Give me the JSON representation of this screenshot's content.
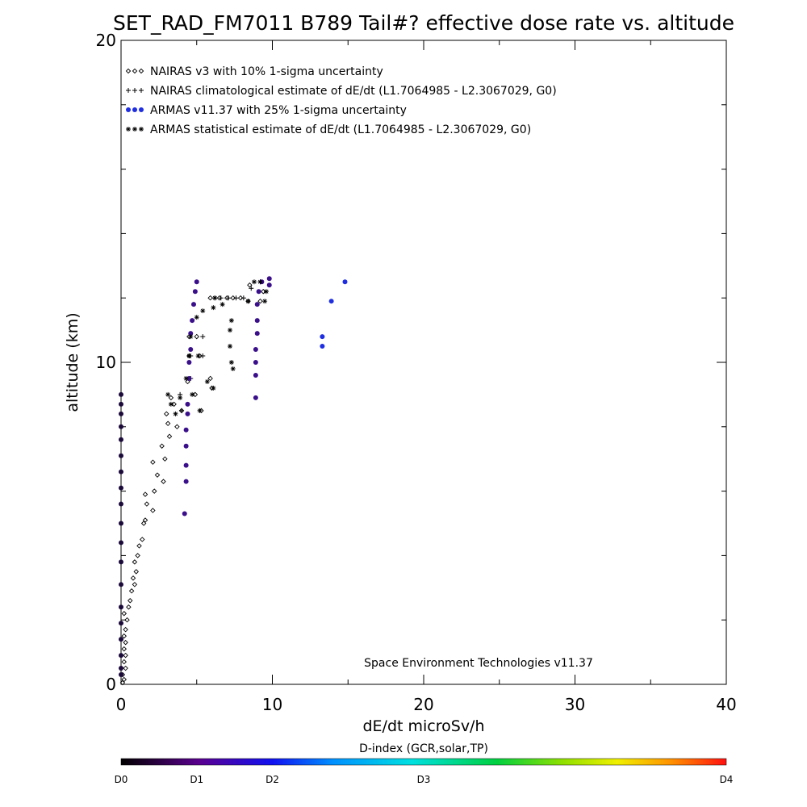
{
  "chart_data": {
    "type": "scatter",
    "title": "SET_RAD_FM7011  B789 Tail#? effective dose rate vs. altitude",
    "xlabel": "dE/dt microSv/h",
    "ylabel": "altitude (km)",
    "xlim": [
      0,
      40
    ],
    "ylim": [
      0,
      20
    ],
    "x_ticks": [
      0,
      10,
      20,
      30,
      40
    ],
    "y_ticks": [
      0,
      10,
      20
    ],
    "legend_placement": "top-left",
    "legend": [
      "NAIRAS v3 with 10% 1-sigma uncertainty",
      "NAIRAS climatological estimate of dE/dt (L1.7064985 - L2.3067029, G0)",
      "ARMAS v11.37 with 25% 1-sigma uncertainty",
      "ARMAS statistical estimate of dE/dt (L1.7064985 - L2.3067029, G0)"
    ],
    "annotation": "Space Environment Technologies v11.37",
    "colorbar": {
      "title": "D-index (GCR,solar,TP)",
      "labels": [
        {
          "text": "D0",
          "value": 0
        },
        {
          "text": "D1",
          "value": 5
        },
        {
          "text": "D2",
          "value": 10
        },
        {
          "text": "D3",
          "value": 20
        },
        {
          "text": "D4",
          "value": 40
        }
      ],
      "range": [
        0,
        40
      ]
    },
    "colors": {
      "armas_main": "#3a0f8a",
      "armas_high": "#1f2ee0",
      "armas_low": "#1a0a3a",
      "marker": "#000000"
    },
    "series": [
      {
        "name": "NAIRAS v3 with 10% 1-sigma uncertainty",
        "marker": "diamond",
        "points": [
          [
            0.1,
            0.05
          ],
          [
            0.2,
            0.15
          ],
          [
            0.1,
            0.3
          ],
          [
            0.3,
            0.5
          ],
          [
            0.2,
            0.7
          ],
          [
            0.3,
            0.9
          ],
          [
            0.2,
            1.1
          ],
          [
            0.3,
            1.3
          ],
          [
            0.2,
            1.5
          ],
          [
            0.3,
            1.7
          ],
          [
            0.4,
            2.0
          ],
          [
            0.2,
            2.2
          ],
          [
            0.5,
            2.4
          ],
          [
            0.6,
            2.6
          ],
          [
            0.7,
            2.9
          ],
          [
            0.9,
            3.1
          ],
          [
            0.8,
            3.3
          ],
          [
            1.0,
            3.5
          ],
          [
            0.9,
            3.8
          ],
          [
            1.1,
            4.0
          ],
          [
            1.2,
            4.3
          ],
          [
            1.4,
            4.5
          ],
          [
            1.5,
            5.0
          ],
          [
            1.6,
            5.1
          ],
          [
            1.7,
            5.6
          ],
          [
            2.1,
            5.4
          ],
          [
            1.6,
            5.9
          ],
          [
            2.2,
            6.0
          ],
          [
            2.4,
            6.5
          ],
          [
            2.1,
            6.9
          ],
          [
            2.8,
            6.3
          ],
          [
            2.9,
            7.0
          ],
          [
            2.7,
            7.4
          ],
          [
            3.2,
            7.7
          ],
          [
            3.1,
            8.1
          ],
          [
            3.0,
            8.4
          ],
          [
            3.7,
            8.0
          ],
          [
            3.5,
            8.7
          ],
          [
            3.3,
            8.9
          ],
          [
            4.0,
            8.5
          ],
          [
            4.4,
            9.4
          ],
          [
            4.9,
            9.0
          ],
          [
            5.3,
            8.5
          ],
          [
            5.9,
            9.5
          ],
          [
            6.0,
            9.2
          ],
          [
            4.5,
            10.2
          ],
          [
            5.2,
            10.2
          ],
          [
            4.5,
            10.8
          ],
          [
            5.0,
            10.8
          ],
          [
            5.9,
            12.0
          ],
          [
            6.5,
            12.0
          ],
          [
            7.0,
            12.0
          ],
          [
            7.4,
            12.0
          ],
          [
            7.9,
            12.0
          ],
          [
            8.4,
            11.9
          ],
          [
            9.2,
            11.9
          ],
          [
            8.5,
            12.4
          ],
          [
            9.4,
            12.2
          ]
        ]
      },
      {
        "name": "NAIRAS climatological estimate of dE/dt (L1.7064985 - L2.3067029, G0)",
        "marker": "plus",
        "points": [
          [
            3.9,
            9.0
          ],
          [
            4.0,
            8.5
          ],
          [
            4.6,
            9.5
          ],
          [
            4.6,
            10.2
          ],
          [
            5.4,
            10.2
          ],
          [
            5.4,
            10.8
          ],
          [
            6.2,
            12.0
          ],
          [
            6.6,
            12.0
          ],
          [
            7.1,
            12.0
          ],
          [
            7.6,
            12.0
          ],
          [
            8.1,
            12.0
          ],
          [
            8.6,
            12.3
          ],
          [
            9.2,
            12.5
          ]
        ]
      },
      {
        "name": "ARMAS v11.37 with 25% 1-sigma uncertainty",
        "marker": "dot",
        "points": [
          [
            0.0,
            0.3,
            "armas_low"
          ],
          [
            0.0,
            0.5,
            "armas_low"
          ],
          [
            0.0,
            0.9,
            "armas_low"
          ],
          [
            0.0,
            1.4,
            "armas_low"
          ],
          [
            0.0,
            1.9,
            "armas_low"
          ],
          [
            0.0,
            2.4,
            "armas_low"
          ],
          [
            0.0,
            3.1,
            "armas_low"
          ],
          [
            0.0,
            3.8,
            "armas_low"
          ],
          [
            0.0,
            4.4,
            "armas_low"
          ],
          [
            0.0,
            5.0,
            "armas_low"
          ],
          [
            0.0,
            5.6,
            "armas_low"
          ],
          [
            0.0,
            6.1,
            "armas_low"
          ],
          [
            0.0,
            6.6,
            "armas_low"
          ],
          [
            0.0,
            7.1,
            "armas_low"
          ],
          [
            0.0,
            7.6,
            "armas_low"
          ],
          [
            0.0,
            8.0,
            "armas_low"
          ],
          [
            0.0,
            8.4,
            "armas_low"
          ],
          [
            0.0,
            8.7,
            "armas_low"
          ],
          [
            0.0,
            9.0,
            "armas_low"
          ],
          [
            4.2,
            5.3,
            "armas_main"
          ],
          [
            4.3,
            6.3,
            "armas_main"
          ],
          [
            4.3,
            6.8,
            "armas_main"
          ],
          [
            4.3,
            7.4,
            "armas_main"
          ],
          [
            4.3,
            7.9,
            "armas_main"
          ],
          [
            4.4,
            8.4,
            "armas_main"
          ],
          [
            4.4,
            8.7,
            "armas_main"
          ],
          [
            4.5,
            9.5,
            "armas_main"
          ],
          [
            4.5,
            10.0,
            "armas_main"
          ],
          [
            4.6,
            10.4,
            "armas_main"
          ],
          [
            4.6,
            10.9,
            "armas_main"
          ],
          [
            4.7,
            11.3,
            "armas_main"
          ],
          [
            4.8,
            11.8,
            "armas_main"
          ],
          [
            4.9,
            12.2,
            "armas_main"
          ],
          [
            5.0,
            12.5,
            "armas_main"
          ],
          [
            8.9,
            8.9,
            "armas_main"
          ],
          [
            8.9,
            9.6,
            "armas_main"
          ],
          [
            8.9,
            10.0,
            "armas_main"
          ],
          [
            8.9,
            10.4,
            "armas_main"
          ],
          [
            9.0,
            10.9,
            "armas_main"
          ],
          [
            9.0,
            11.3,
            "armas_main"
          ],
          [
            9.0,
            11.8,
            "armas_main"
          ],
          [
            9.1,
            12.2,
            "armas_main"
          ],
          [
            9.3,
            12.5,
            "armas_main"
          ],
          [
            9.8,
            12.4,
            "armas_main"
          ],
          [
            9.8,
            12.6,
            "armas_main"
          ],
          [
            13.3,
            10.5,
            "armas_high"
          ],
          [
            13.3,
            10.8,
            "armas_high"
          ],
          [
            13.9,
            11.9,
            "armas_high"
          ],
          [
            14.8,
            12.5,
            "armas_high"
          ]
        ]
      },
      {
        "name": "ARMAS statistical estimate of dE/dt (L1.7064985 - L2.3067029, G0)",
        "marker": "asterisk",
        "points": [
          [
            3.1,
            9.0
          ],
          [
            3.3,
            8.7
          ],
          [
            3.6,
            8.4
          ],
          [
            3.9,
            8.9
          ],
          [
            4.3,
            9.5
          ],
          [
            4.7,
            9.0
          ],
          [
            5.2,
            8.5
          ],
          [
            5.7,
            9.4
          ],
          [
            6.1,
            9.2
          ],
          [
            4.5,
            10.2
          ],
          [
            5.1,
            10.2
          ],
          [
            4.6,
            10.8
          ],
          [
            5.0,
            11.4
          ],
          [
            5.4,
            11.6
          ],
          [
            6.1,
            11.7
          ],
          [
            6.2,
            12.0
          ],
          [
            6.7,
            11.8
          ],
          [
            7.2,
            11.0
          ],
          [
            7.2,
            10.5
          ],
          [
            7.3,
            10.0
          ],
          [
            7.4,
            9.8
          ],
          [
            7.3,
            11.3
          ],
          [
            8.4,
            11.9
          ],
          [
            8.8,
            12.5
          ],
          [
            9.2,
            12.5
          ],
          [
            9.6,
            12.2
          ],
          [
            9.5,
            11.9
          ]
        ]
      }
    ]
  }
}
